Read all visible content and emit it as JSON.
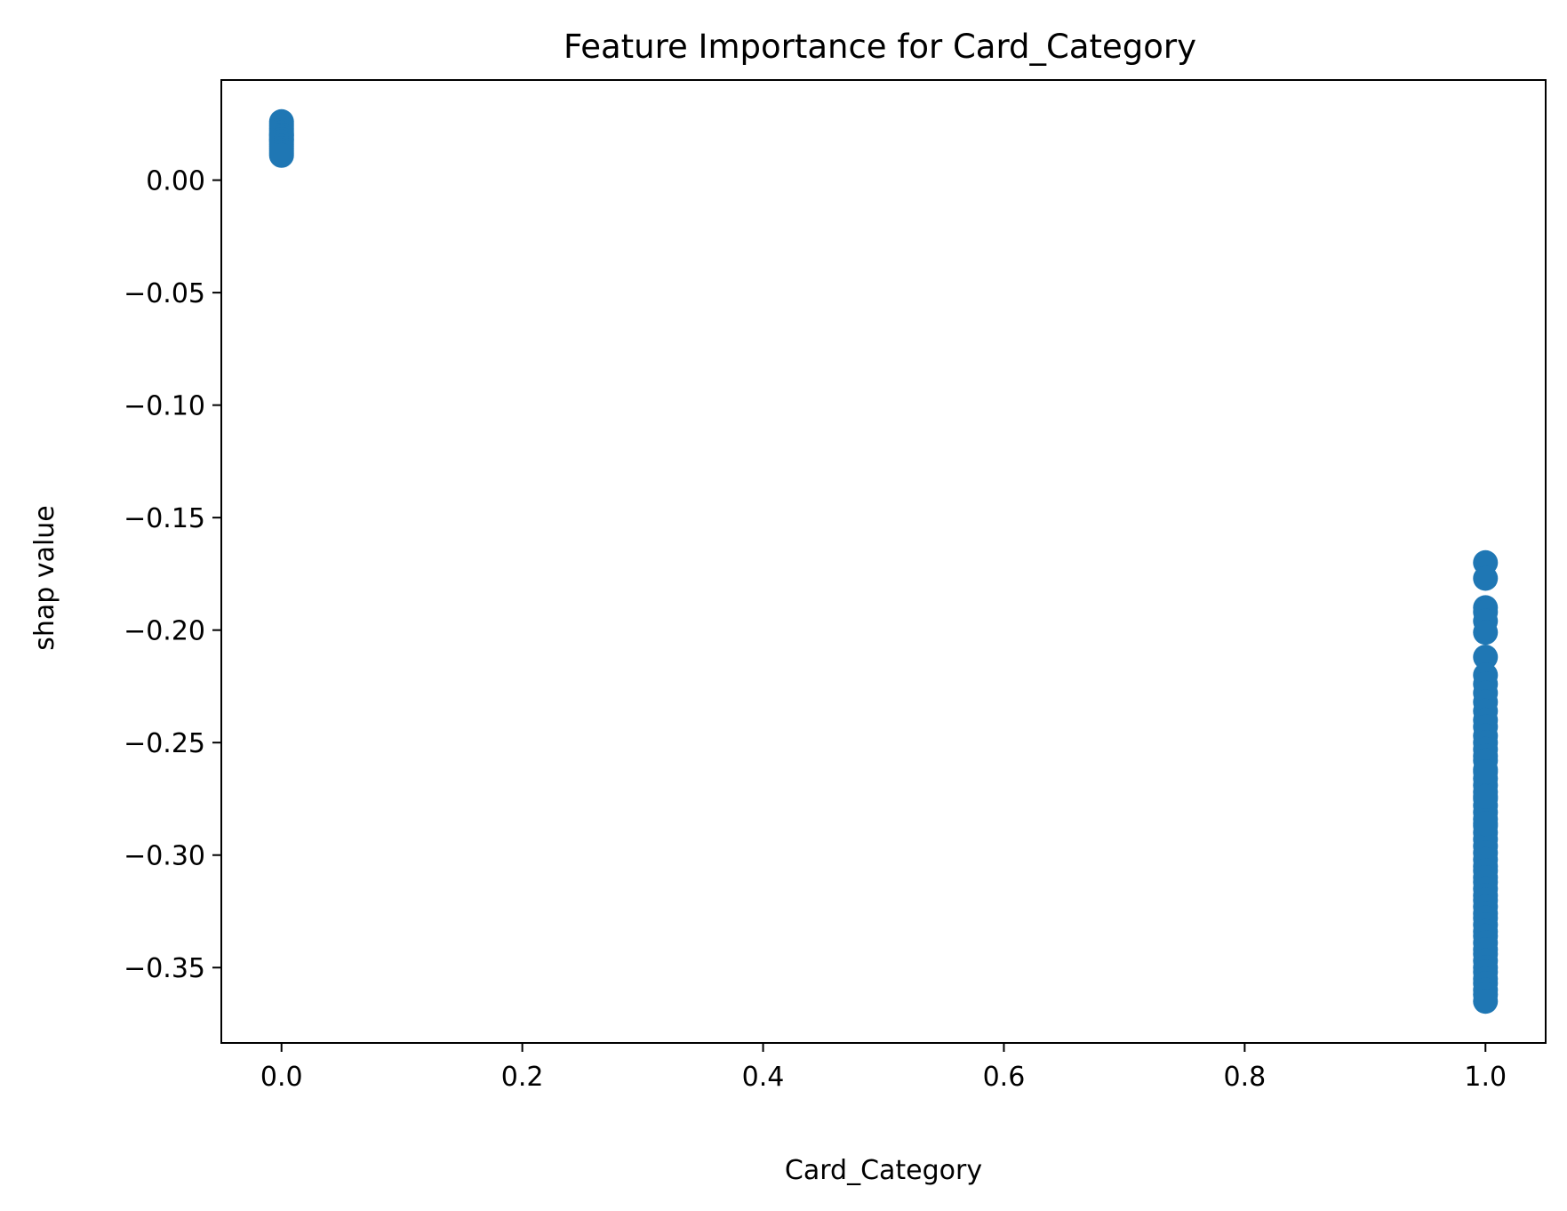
{
  "chart_data": {
    "type": "scatter",
    "title": "Feature Importance for Card_Category",
    "xlabel": "Card_Category",
    "ylabel": "shap value",
    "xlim": [
      -0.05,
      1.05
    ],
    "ylim": [
      -0.3835,
      0.0445
    ],
    "xticks": [
      0.0,
      0.2,
      0.4,
      0.6,
      0.8,
      1.0
    ],
    "xtick_labels": [
      "0.0",
      "0.2",
      "0.4",
      "0.6",
      "0.8",
      "1.0"
    ],
    "yticks": [
      0.0,
      -0.05,
      -0.1,
      -0.15,
      -0.2,
      -0.25,
      -0.3,
      -0.35
    ],
    "ytick_labels": [
      "0.00",
      "−0.05",
      "−0.10",
      "−0.15",
      "−0.20",
      "−0.25",
      "−0.30",
      "−0.35"
    ],
    "grid": false,
    "marker_color": "#1f77b4",
    "series": [
      {
        "x": [
          0,
          0,
          0,
          0,
          0,
          0,
          0,
          0,
          0,
          0,
          0,
          0,
          0,
          0,
          0,
          0,
          0,
          0
        ],
        "y": [
          0.026,
          0.025,
          0.024,
          0.023,
          0.022,
          0.021,
          0.02,
          0.02,
          0.019,
          0.018,
          0.018,
          0.017,
          0.016,
          0.015,
          0.014,
          0.013,
          0.012,
          0.011
        ]
      },
      {
        "x": [
          1,
          1,
          1,
          1,
          1,
          1,
          1,
          1,
          1,
          1,
          1,
          1,
          1,
          1,
          1,
          1,
          1,
          1,
          1,
          1,
          1,
          1,
          1,
          1,
          1,
          1,
          1,
          1,
          1,
          1,
          1,
          1,
          1,
          1,
          1,
          1,
          1,
          1,
          1,
          1,
          1,
          1,
          1,
          1,
          1,
          1,
          1,
          1,
          1,
          1,
          1,
          1,
          1,
          1,
          1,
          1,
          1,
          1,
          1,
          1
        ],
        "y": [
          -0.17,
          -0.177,
          -0.19,
          -0.192,
          -0.196,
          -0.201,
          -0.212,
          -0.22,
          -0.224,
          -0.228,
          -0.232,
          -0.236,
          -0.24,
          -0.243,
          -0.247,
          -0.25,
          -0.253,
          -0.256,
          -0.262,
          -0.266,
          -0.269,
          -0.272,
          -0.275,
          -0.278,
          -0.281,
          -0.284,
          -0.287,
          -0.29,
          -0.293,
          -0.296,
          -0.299,
          -0.302,
          -0.305,
          -0.307,
          -0.31,
          -0.312,
          -0.315,
          -0.318,
          -0.32,
          -0.323,
          -0.326,
          -0.328,
          -0.331,
          -0.334,
          -0.336,
          -0.339,
          -0.342,
          -0.344,
          -0.347,
          -0.35,
          -0.352,
          -0.355,
          -0.357,
          -0.36,
          -0.362,
          -0.365,
          -0.258,
          -0.263,
          -0.274,
          -0.286
        ]
      }
    ]
  }
}
